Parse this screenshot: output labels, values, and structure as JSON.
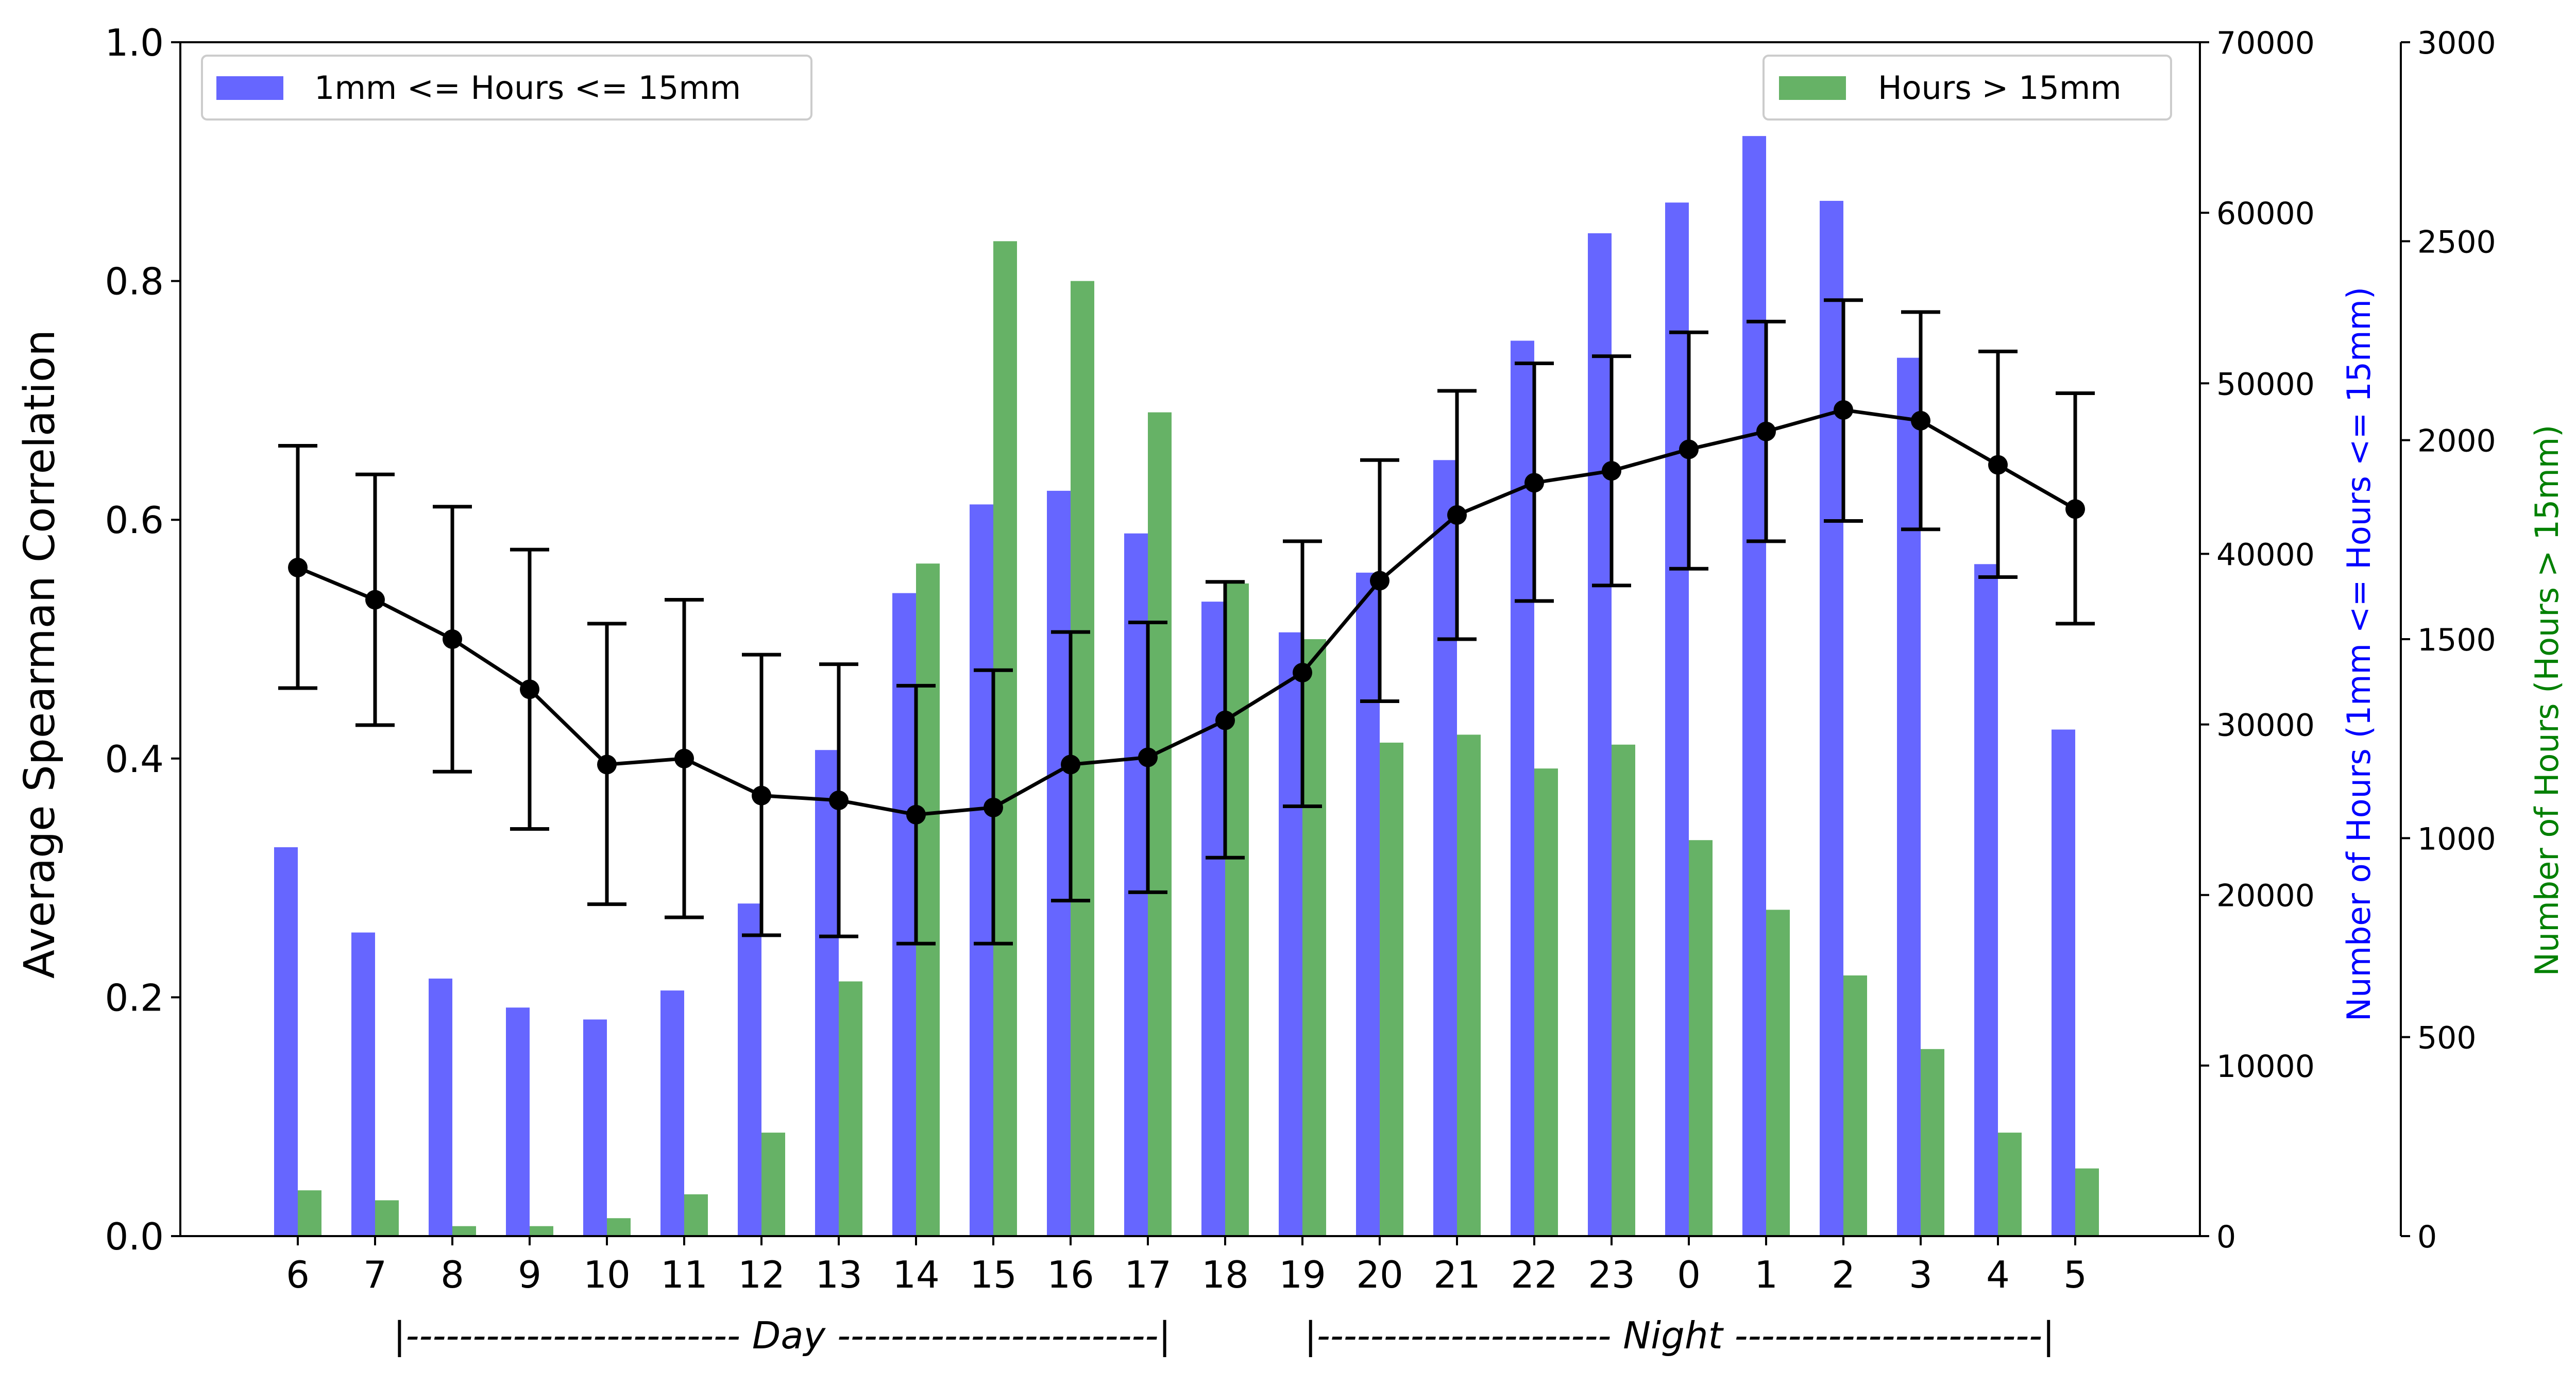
{
  "chart_data": {
    "type": "bar",
    "categories": [
      "6",
      "7",
      "8",
      "9",
      "10",
      "11",
      "12",
      "13",
      "14",
      "15",
      "16",
      "17",
      "18",
      "19",
      "20",
      "21",
      "22",
      "23",
      "0",
      "1",
      "2",
      "3",
      "4",
      "5"
    ],
    "ylabel": "Average Spearman Correlation",
    "ylabel_right1": "Number of Hours (1mm <= Hours <= 15mm)",
    "ylabel_right2": "Number of Hours (Hours > 15mm)",
    "ylim": [
      0,
      1.0
    ],
    "ylim_right1": [
      0,
      70000
    ],
    "ylim_right2": [
      0,
      3000
    ],
    "yticks": [
      "0.0",
      "0.2",
      "0.4",
      "0.6",
      "0.8",
      "1.0"
    ],
    "yticks_right1": [
      "0",
      "10000",
      "20000",
      "30000",
      "40000",
      "50000",
      "60000",
      "70000"
    ],
    "yticks_right2": [
      "0",
      "500",
      "1000",
      "1500",
      "2000",
      "2500",
      "3000"
    ],
    "period_labels": {
      "day": "|------------------------- Day ------------------------|",
      "night": "|---------------------- Night -----------------------|"
    },
    "series": [
      {
        "name": "1mm <= Hours <= 15mm",
        "type": "bar",
        "axis": "right1",
        "color": "#6666ff",
        "values": [
          22800,
          17800,
          15100,
          13400,
          12700,
          14400,
          19500,
          28500,
          37700,
          42900,
          43700,
          41200,
          37200,
          35400,
          38900,
          45500,
          52500,
          58800,
          60600,
          64500,
          60700,
          51500,
          39400,
          29700
        ]
      },
      {
        "name": "Hours > 15mm",
        "type": "bar",
        "axis": "right2",
        "color": "#66b266",
        "values": [
          115,
          90,
          25,
          25,
          45,
          105,
          260,
          640,
          1690,
          2500,
          2400,
          2070,
          1640,
          1500,
          1240,
          1260,
          1175,
          1235,
          995,
          820,
          655,
          470,
          260,
          170
        ]
      },
      {
        "type": "line",
        "axis": "left",
        "color": "#000000",
        "values": [
          0.56,
          0.533,
          0.5,
          0.458,
          0.395,
          0.4,
          0.369,
          0.365,
          0.353,
          0.359,
          0.395,
          0.401,
          0.432,
          0.472,
          0.549,
          0.604,
          0.631,
          0.641,
          0.659,
          0.674,
          0.692,
          0.683,
          0.646,
          0.609
        ],
        "err_low": [
          0.459,
          0.428,
          0.389,
          0.341,
          0.278,
          0.267,
          0.252,
          0.251,
          0.245,
          0.245,
          0.281,
          0.288,
          0.317,
          0.36,
          0.448,
          0.5,
          0.532,
          0.545,
          0.559,
          0.582,
          0.599,
          0.592,
          0.552,
          0.513
        ],
        "err_high": [
          0.662,
          0.638,
          0.611,
          0.575,
          0.513,
          0.533,
          0.487,
          0.479,
          0.461,
          0.474,
          0.506,
          0.514,
          0.548,
          0.582,
          0.65,
          0.708,
          0.731,
          0.737,
          0.757,
          0.766,
          0.784,
          0.774,
          0.741,
          0.706
        ]
      }
    ],
    "legends": [
      {
        "label": "1mm <= Hours <= 15mm",
        "placement": "top-left",
        "color": "#6666ff"
      },
      {
        "label": "Hours > 15mm",
        "placement": "top-right",
        "color": "#66b266"
      }
    ],
    "grid": false
  }
}
